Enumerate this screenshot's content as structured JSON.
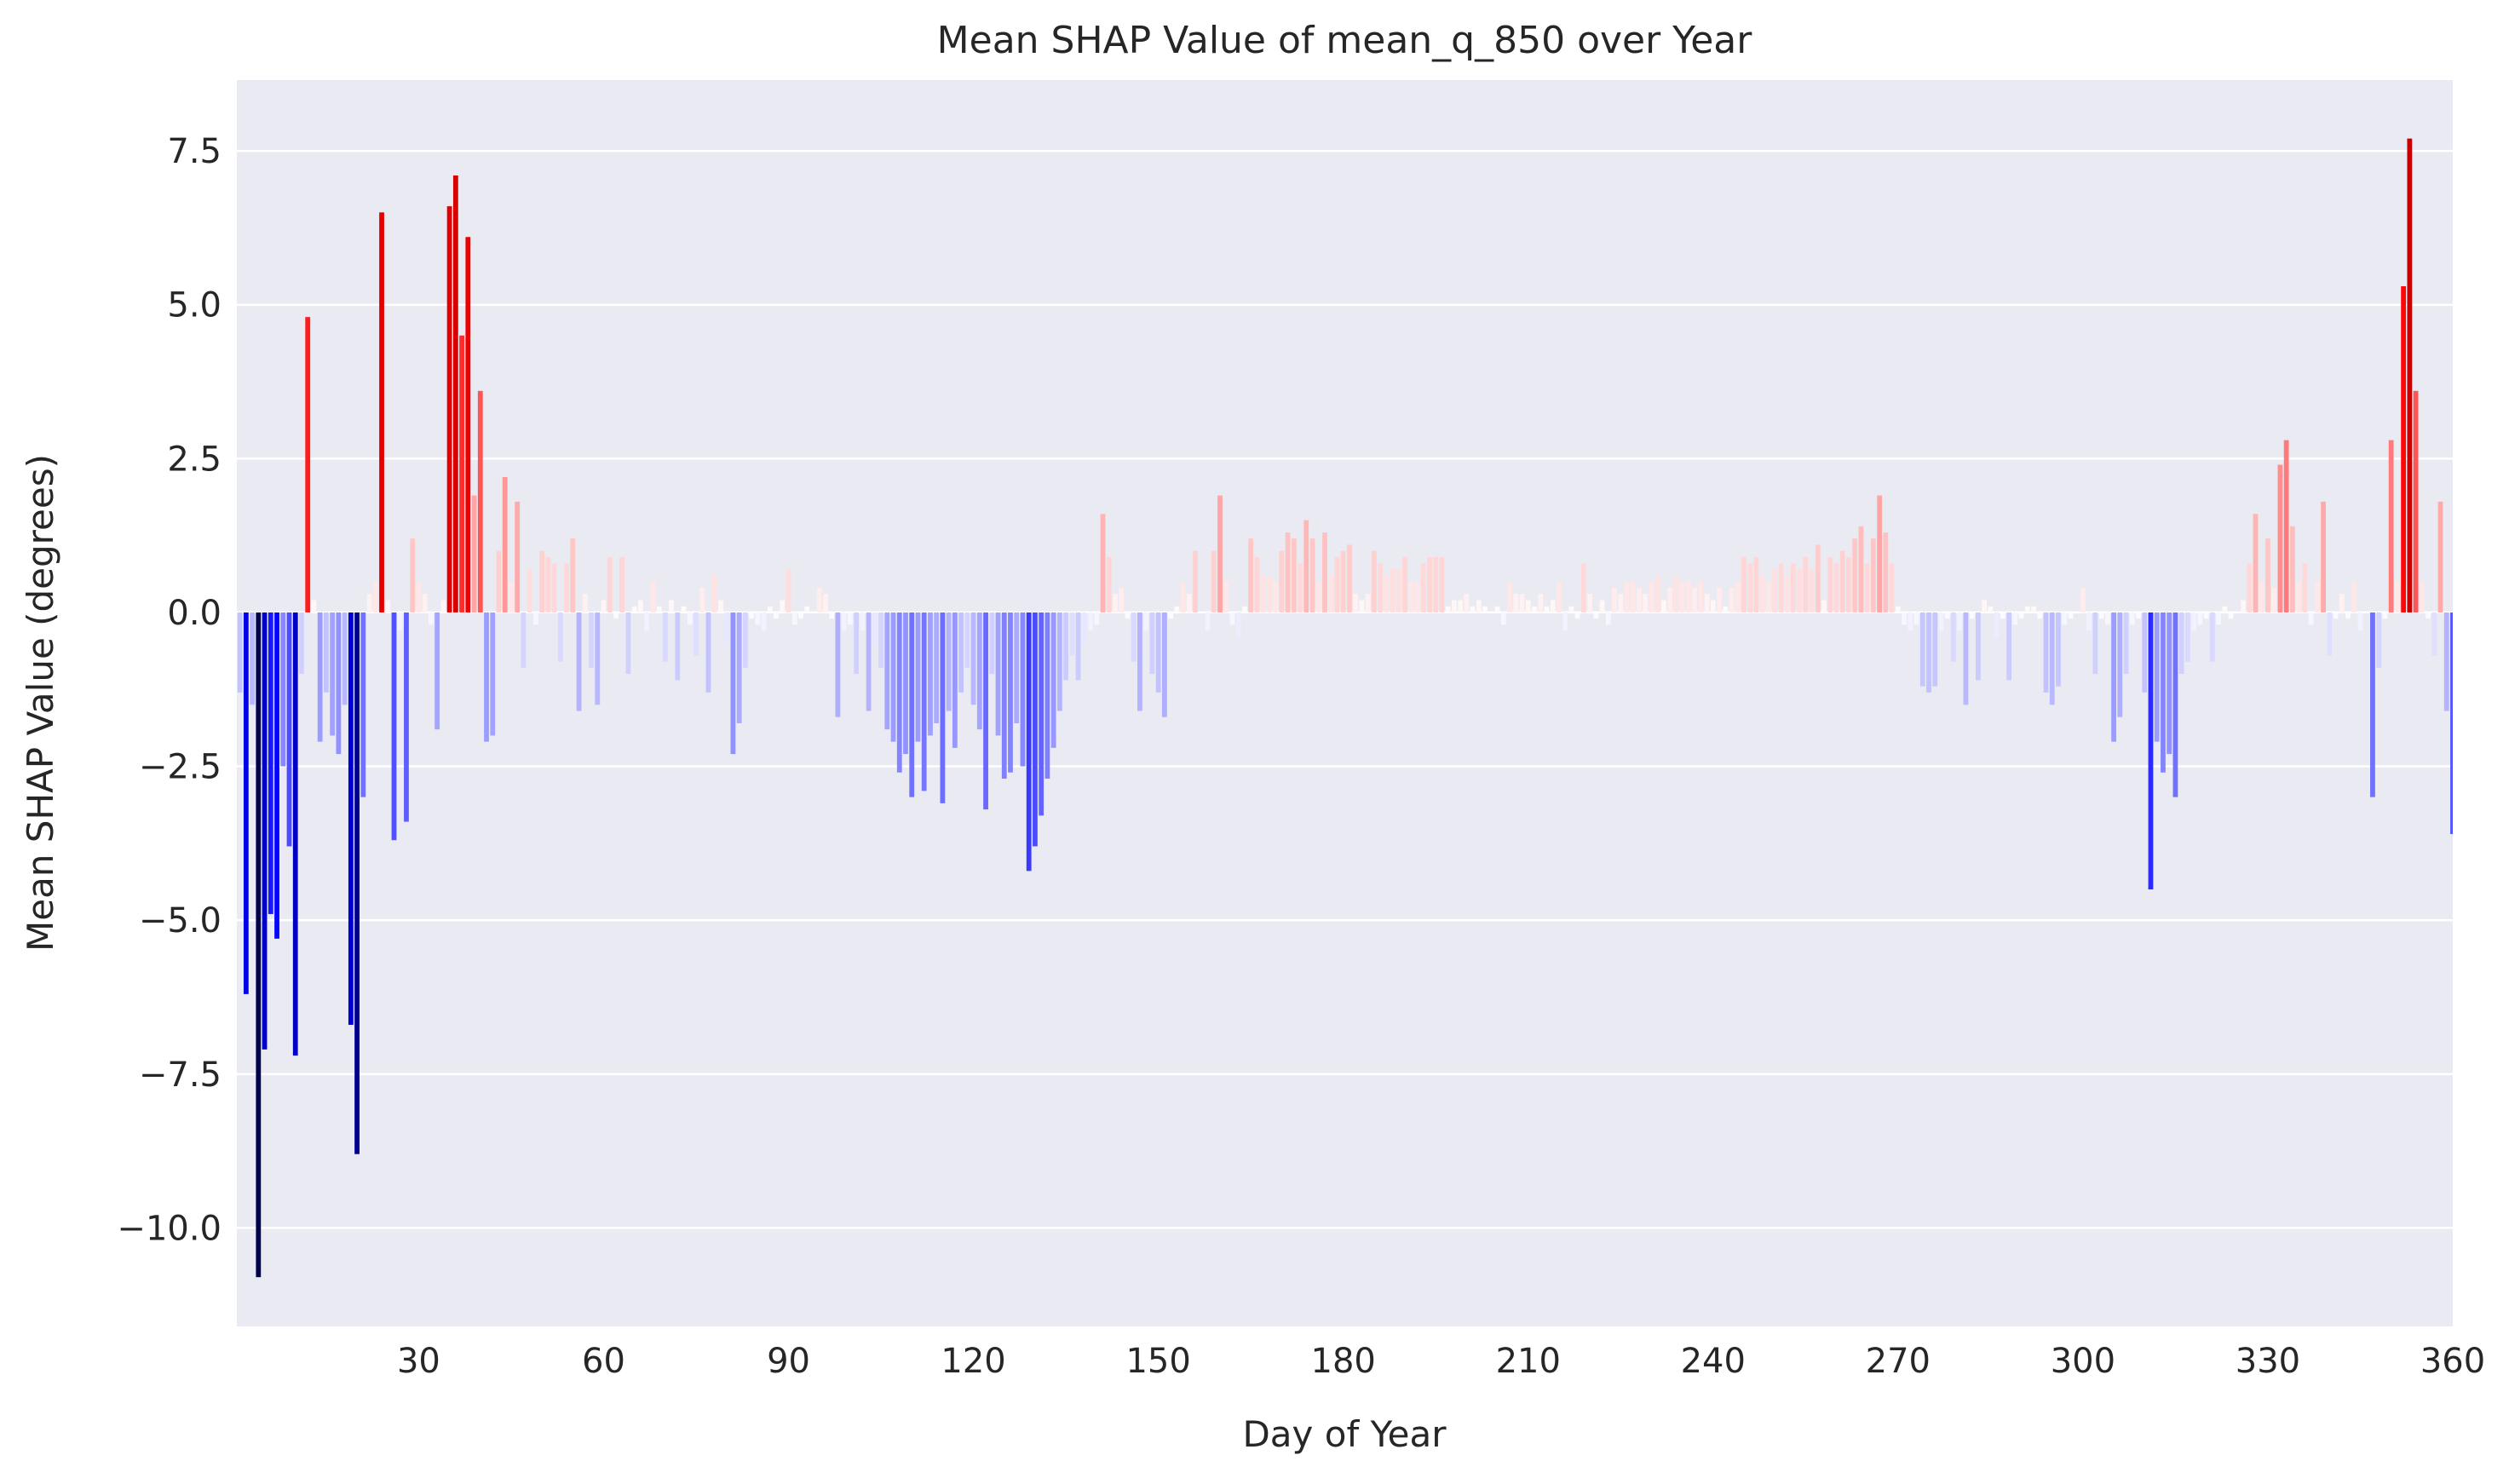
{
  "chart_data": {
    "type": "bar",
    "title": "Mean SHAP Value of mean_q_850 over Year",
    "xlabel": "Day of Year",
    "ylabel": "Mean SHAP Value (degrees)",
    "colormap": "seismic",
    "grid": true,
    "x": [
      1,
      2,
      3,
      4,
      5,
      6,
      7,
      8,
      9,
      10,
      11,
      12,
      13,
      14,
      15,
      16,
      17,
      18,
      19,
      20,
      21,
      22,
      23,
      24,
      25,
      26,
      27,
      28,
      29,
      30,
      31,
      32,
      33,
      34,
      35,
      36,
      37,
      38,
      39,
      40,
      41,
      42,
      43,
      44,
      45,
      46,
      47,
      48,
      49,
      50,
      51,
      52,
      53,
      54,
      55,
      56,
      57,
      58,
      59,
      60,
      61,
      62,
      63,
      64,
      65,
      66,
      67,
      68,
      69,
      70,
      71,
      72,
      73,
      74,
      75,
      76,
      77,
      78,
      79,
      80,
      81,
      82,
      83,
      84,
      85,
      86,
      87,
      88,
      89,
      90,
      91,
      92,
      93,
      94,
      95,
      96,
      97,
      98,
      99,
      100,
      101,
      102,
      103,
      104,
      105,
      106,
      107,
      108,
      109,
      110,
      111,
      112,
      113,
      114,
      115,
      116,
      117,
      118,
      119,
      120,
      121,
      122,
      123,
      124,
      125,
      126,
      127,
      128,
      129,
      130,
      131,
      132,
      133,
      134,
      135,
      136,
      137,
      138,
      139,
      140,
      141,
      142,
      143,
      144,
      145,
      146,
      147,
      148,
      149,
      150,
      151,
      152,
      153,
      154,
      155,
      156,
      157,
      158,
      159,
      160,
      161,
      162,
      163,
      164,
      165,
      166,
      167,
      168,
      169,
      170,
      171,
      172,
      173,
      174,
      175,
      176,
      177,
      178,
      179,
      180,
      181,
      182,
      183,
      184,
      185,
      186,
      187,
      188,
      189,
      190,
      191,
      192,
      193,
      194,
      195,
      196,
      197,
      198,
      199,
      200,
      201,
      202,
      203,
      204,
      205,
      206,
      207,
      208,
      209,
      210,
      211,
      212,
      213,
      214,
      215,
      216,
      217,
      218,
      219,
      220,
      221,
      222,
      223,
      224,
      225,
      226,
      227,
      228,
      229,
      230,
      231,
      232,
      233,
      234,
      235,
      236,
      237,
      238,
      239,
      240,
      241,
      242,
      243,
      244,
      245,
      246,
      247,
      248,
      249,
      250,
      251,
      252,
      253,
      254,
      255,
      256,
      257,
      258,
      259,
      260,
      261,
      262,
      263,
      264,
      265,
      266,
      267,
      268,
      269,
      270,
      271,
      272,
      273,
      274,
      275,
      276,
      277,
      278,
      279,
      280,
      281,
      282,
      283,
      284,
      285,
      286,
      287,
      288,
      289,
      290,
      291,
      292,
      293,
      294,
      295,
      296,
      297,
      298,
      299,
      300,
      301,
      302,
      303,
      304,
      305,
      306,
      307,
      308,
      309,
      310,
      311,
      312,
      313,
      314,
      315,
      316,
      317,
      318,
      319,
      320,
      321,
      322,
      323,
      324,
      325,
      326,
      327,
      328,
      329,
      330,
      331,
      332,
      333,
      334,
      335,
      336,
      337,
      338,
      339,
      340,
      341,
      342,
      343,
      344,
      345,
      346,
      347,
      348,
      349,
      350,
      351,
      352,
      353,
      354,
      355,
      356,
      357,
      358,
      359,
      360
    ],
    "values": [
      -1.3,
      -6.2,
      -1.5,
      -10.8,
      -7.1,
      -4.9,
      -5.3,
      -2.5,
      -3.8,
      -7.2,
      -1.0,
      4.8,
      0.2,
      -2.1,
      -1.3,
      -2.0,
      -2.3,
      -1.5,
      -6.7,
      -8.8,
      -3.0,
      0.3,
      0.5,
      6.5,
      0.2,
      -3.7,
      -0.3,
      -3.4,
      1.2,
      0.5,
      0.3,
      -0.2,
      -1.9,
      0.2,
      6.6,
      7.1,
      4.5,
      6.1,
      1.9,
      3.6,
      -2.1,
      -2.0,
      1.0,
      2.2,
      0.5,
      1.8,
      -0.9,
      0.7,
      -0.2,
      1.0,
      0.9,
      0.8,
      -0.8,
      0.8,
      1.2,
      -1.6,
      0.3,
      -0.9,
      -1.5,
      0.2,
      0.9,
      -0.1,
      0.9,
      -1.0,
      0.1,
      0.2,
      -0.3,
      0.5,
      0.1,
      -0.8,
      0.2,
      -1.1,
      0.1,
      -0.2,
      -0.7,
      0.4,
      -1.3,
      0.6,
      0.2,
      -0.5,
      -2.3,
      -1.8,
      -0.9,
      -0.1,
      -0.2,
      -0.3,
      0.1,
      -0.1,
      0.2,
      0.7,
      -0.2,
      -0.1,
      0.1,
      0.0,
      0.4,
      0.3,
      -0.1,
      -1.7,
      -0.3,
      -0.2,
      -1.0,
      -0.3,
      -1.6,
      -0.5,
      -0.9,
      -1.9,
      -2.1,
      -2.6,
      -2.3,
      -3.0,
      -2.1,
      -2.9,
      -2.0,
      -1.8,
      -3.1,
      -1.6,
      -2.2,
      -1.3,
      -0.9,
      -1.5,
      -1.9,
      -3.2,
      -1.0,
      -2.0,
      -2.7,
      -2.6,
      -1.8,
      -2.5,
      -4.2,
      -3.8,
      -3.3,
      -2.7,
      -2.2,
      -1.6,
      -1.1,
      -0.7,
      -1.1,
      -0.5,
      -0.3,
      -0.2,
      1.6,
      0.9,
      0.3,
      0.4,
      -0.1,
      -0.8,
      -1.6,
      -0.3,
      -1.0,
      -1.3,
      -1.7,
      -0.1,
      0.1,
      0.5,
      0.3,
      1.0,
      0.0,
      -0.3,
      1.0,
      1.9,
      0.5,
      -0.2,
      -0.4,
      0.1,
      1.2,
      0.9,
      0.6,
      0.6,
      0.5,
      1.0,
      1.3,
      1.2,
      0.8,
      1.5,
      1.2,
      0.5,
      1.3,
      0.6,
      0.9,
      1.0,
      1.1,
      0.3,
      0.2,
      0.3,
      1.0,
      0.8,
      0.6,
      0.7,
      0.7,
      0.9,
      0.5,
      0.5,
      0.8,
      0.9,
      0.9,
      0.9,
      0.1,
      0.2,
      0.2,
      0.3,
      0.1,
      0.2,
      0.1,
      0.0,
      0.1,
      -0.2,
      0.5,
      0.3,
      0.3,
      0.2,
      0.1,
      0.3,
      0.1,
      0.2,
      0.5,
      -0.3,
      0.1,
      -0.1,
      0.8,
      0.3,
      -0.1,
      0.2,
      -0.2,
      0.4,
      0.3,
      0.5,
      0.5,
      0.4,
      0.3,
      0.5,
      0.6,
      0.2,
      0.4,
      0.6,
      0.5,
      0.5,
      0.4,
      0.5,
      0.3,
      0.2,
      0.4,
      0.1,
      0.4,
      0.5,
      0.9,
      0.8,
      0.9,
      0.6,
      0.5,
      0.7,
      0.8,
      0.6,
      0.8,
      0.7,
      0.9,
      0.7,
      1.1,
      0.2,
      0.9,
      0.8,
      1.0,
      0.9,
      1.2,
      1.4,
      0.8,
      1.2,
      1.9,
      1.3,
      0.8,
      0.1,
      -0.2,
      -0.3,
      -0.2,
      -1.2,
      -1.3,
      -1.2,
      -0.3,
      -0.1,
      -0.8,
      -0.3,
      -1.5,
      -0.1,
      -1.1,
      0.2,
      0.1,
      -0.4,
      -0.1,
      -1.1,
      -0.2,
      -0.1,
      0.1,
      0.1,
      -0.1,
      -1.3,
      -1.5,
      -1.2,
      -0.2,
      -0.1,
      0.0,
      0.4,
      -0.3,
      -1.0,
      -0.1,
      -0.2,
      -2.1,
      -1.7,
      -1.0,
      -0.2,
      -0.1,
      -1.3,
      -4.5,
      -2.1,
      -2.6,
      -2.3,
      -3.0,
      -1.0,
      -0.8,
      -0.3,
      -0.2,
      -0.1,
      -0.8,
      -0.2,
      0.1,
      -0.1,
      0.0,
      0.2,
      0.8,
      1.6,
      0.5,
      1.2,
      0.4,
      2.4,
      2.8,
      1.4,
      0.5,
      0.8,
      -0.2,
      0.5,
      1.8,
      -0.7,
      -0.1,
      0.3,
      -0.1,
      0.5,
      -0.3,
      0.0,
      -3.0,
      -0.9,
      -0.1,
      2.8,
      0.5,
      5.3,
      7.7,
      3.6,
      0.5,
      -0.1,
      -0.7,
      1.8,
      -1.6,
      -3.6
    ],
    "xlim": [
      0.5,
      360
    ],
    "xticks": [
      30,
      60,
      90,
      120,
      150,
      180,
      210,
      240,
      270,
      300,
      330,
      360
    ],
    "ylim": [
      -11.6,
      8.65
    ],
    "yticks": [
      {
        "value": -10,
        "label": "−10.0"
      },
      {
        "value": -7.5,
        "label": "−7.5"
      },
      {
        "value": -5,
        "label": "−5.0"
      },
      {
        "value": -2.5,
        "label": "−2.5"
      },
      {
        "value": 0,
        "label": "0.0"
      },
      {
        "value": 2.5,
        "label": "2.5"
      },
      {
        "value": 5,
        "label": "5.0"
      },
      {
        "value": 7.5,
        "label": "7.5"
      }
    ]
  }
}
